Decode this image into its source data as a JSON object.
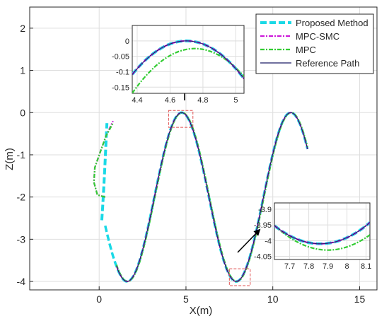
{
  "chart_data": [
    {
      "type": "line",
      "xlabel": "X(m)",
      "ylabel": "Z(m)",
      "xlim": [
        -4,
        16
      ],
      "ylim": [
        -4.2,
        2.5
      ],
      "xticks": [
        0,
        5,
        10,
        15
      ],
      "yticks": [
        -4,
        -3,
        -2,
        -1,
        0,
        1,
        2
      ],
      "grid": true,
      "legend_position": "top-right",
      "series": [
        {
          "name": "Proposed Method",
          "color": "#1ad9e6",
          "style": "dashed-thick",
          "x": [
            0.15,
            0.2,
            0.25,
            0.3,
            0.35,
            0.4,
            0.45
          ],
          "y": [
            -2.55,
            -2.25,
            -1.9,
            -1.5,
            -1.1,
            -0.65,
            -0.25
          ]
        },
        {
          "name": "MPC-SMC",
          "color": "#cc1ad9",
          "style": "dashdot",
          "x": [
            0.35,
            -0.1,
            -0.3,
            -0.25,
            0.05,
            0.4,
            0.8
          ],
          "y": [
            -2.0,
            -1.95,
            -1.65,
            -1.3,
            -0.95,
            -0.55,
            -0.2
          ]
        },
        {
          "name": "MPC",
          "color": "#33cc33",
          "style": "dashdot",
          "x": [
            0.35,
            -0.1,
            -0.3,
            -0.25,
            0.05,
            0.4,
            0.8
          ],
          "y": [
            -2.0,
            -1.95,
            -1.65,
            -1.3,
            -0.95,
            -0.55,
            -0.25
          ]
        },
        {
          "name": "Reference Path",
          "color": "#1a1a66",
          "style": "solid",
          "x": [],
          "y": []
        }
      ],
      "path": {
        "x_start": 0.15,
        "x_end": 12.0,
        "amplitude": 2.0,
        "offset": -2.0,
        "omega": 1.0
      },
      "zoom_boxes": [
        {
          "x": [
            4.0,
            5.4
          ],
          "y": [
            -0.35,
            0.05
          ]
        },
        {
          "x": [
            7.5,
            8.7
          ],
          "y": [
            -4.1,
            -3.7
          ]
        }
      ]
    },
    {
      "type": "line",
      "xlim": [
        4.37,
        5.05
      ],
      "ylim": [
        -0.17,
        0.05
      ],
      "xticks": [
        4.4,
        4.6,
        4.8,
        5
      ],
      "yticks": [
        -0.15,
        -0.1,
        -0.05,
        0
      ],
      "series": [
        {
          "name": "MPC-SMC",
          "peak_x": 4.7,
          "peak_y": 0.0,
          "curvature": 1.0
        },
        {
          "name": "MPC",
          "peak_x": 4.75,
          "peak_y": -0.025,
          "curvature": 1.0
        }
      ]
    },
    {
      "type": "line",
      "xlim": [
        7.62,
        8.12
      ],
      "ylim": [
        -4.06,
        -3.88
      ],
      "xticks": [
        7.7,
        7.8,
        7.9,
        8,
        8.1
      ],
      "yticks": [
        -3.9,
        -3.95,
        -4,
        -4.05
      ],
      "series": [
        {
          "name": "MPC-SMC",
          "min_x": 7.86,
          "min_y": -4.01,
          "curvature": 1.0
        },
        {
          "name": "MPC",
          "min_x": 7.9,
          "min_y": -4.03,
          "curvature": 1.0
        }
      ]
    }
  ]
}
